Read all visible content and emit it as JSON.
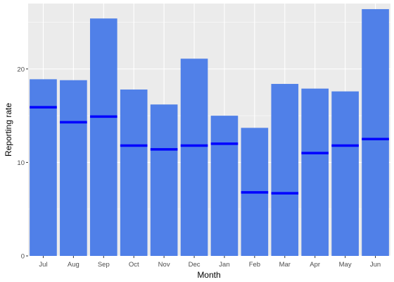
{
  "chart_data": {
    "type": "bar",
    "xlabel": "Month",
    "ylabel": "Reporting rate",
    "categories": [
      "Jul",
      "Aug",
      "Sep",
      "Oct",
      "Nov",
      "Dec",
      "Jan",
      "Feb",
      "Mar",
      "Apr",
      "May",
      "Jun"
    ],
    "series": [
      {
        "values": [
          18.9,
          18.8,
          25.4,
          17.8,
          16.2,
          21.1,
          15.0,
          13.7,
          18.4,
          17.9,
          17.6,
          26.4
        ]
      },
      {
        "values": [
          15.9,
          14.3,
          14.9,
          11.8,
          11.4,
          11.8,
          12.0,
          6.8,
          6.7,
          11.0,
          11.8,
          12.5
        ]
      }
    ],
    "ylim": [
      0,
      27
    ],
    "yticks": [
      0,
      10,
      20
    ],
    "grid": true,
    "colors": {
      "bar": "#5080E8",
      "marker": "#0000FF",
      "panel": "#EBEBEB",
      "grid": "#FFFFFF"
    }
  }
}
